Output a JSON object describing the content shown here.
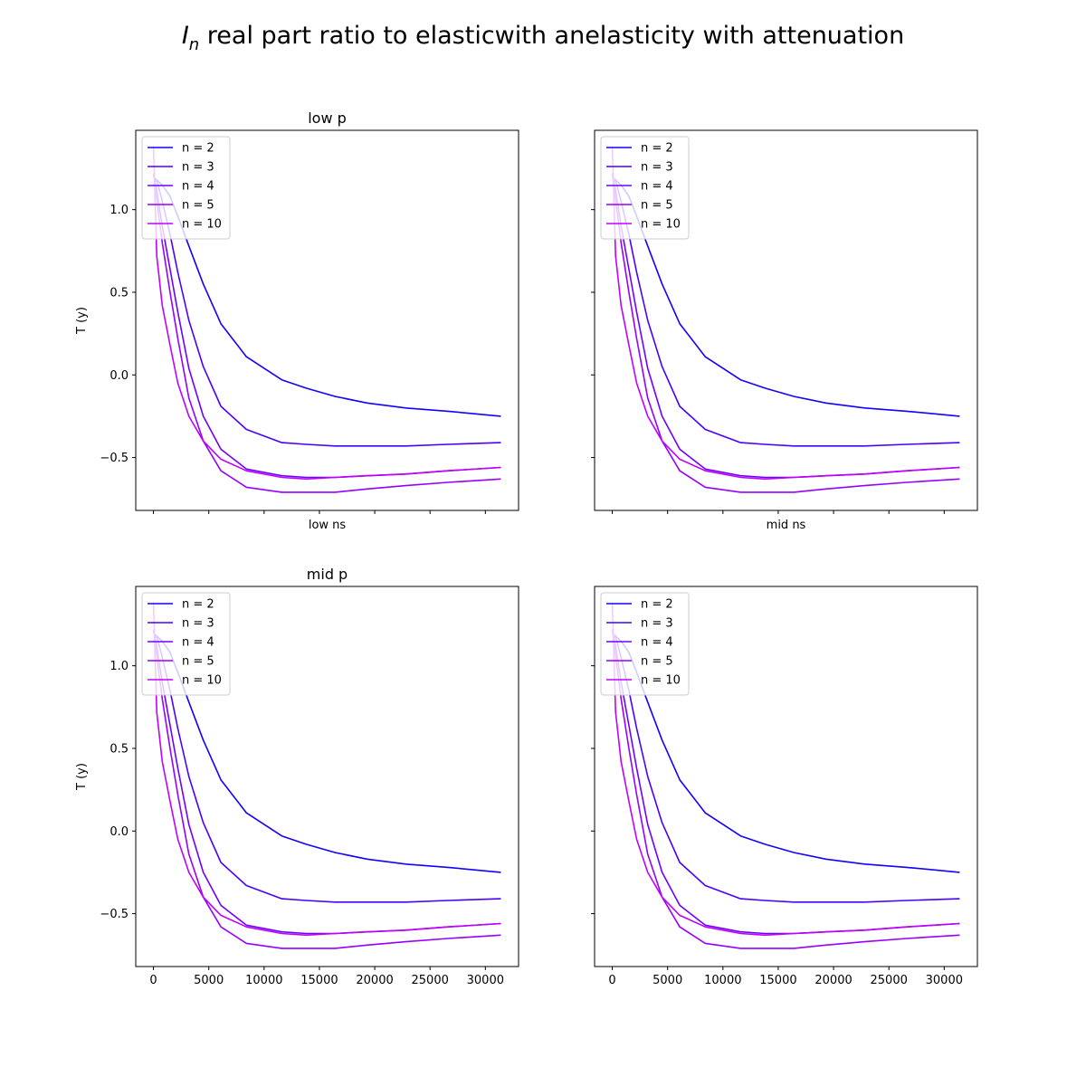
{
  "figure": {
    "title_symbol": "I",
    "title_subscript": "n",
    "title_rest": " real part ratio to elasticwith anelasticity with attenuation"
  },
  "chart_data": [
    {
      "type": "line",
      "title": "low p",
      "xlabel": "low ns",
      "ylabel": "T (y)",
      "xlim": [
        -1600,
        33000
      ],
      "ylim": [
        -0.82,
        1.48
      ],
      "xticks": [
        0,
        5000,
        10000,
        15000,
        20000,
        25000,
        30000
      ],
      "yticks": [
        -0.5,
        0.0,
        0.5,
        1.0
      ],
      "show_xtick_labels": false,
      "show_ytick_labels": true,
      "legend": "upper left",
      "x": [
        0,
        300,
        800,
        1500,
        2200,
        3200,
        4500,
        6100,
        8400,
        11600,
        13800,
        16400,
        19300,
        22800,
        26600,
        31400
      ],
      "series": [
        {
          "name": "n = 2",
          "color": "#1400ff",
          "values": [
            1.15,
            1.18,
            1.15,
            1.08,
            0.96,
            0.78,
            0.55,
            0.31,
            0.11,
            -0.03,
            -0.08,
            -0.13,
            -0.17,
            -0.2,
            -0.22,
            -0.25
          ]
        },
        {
          "name": "n = 3",
          "color": "#4800ff",
          "values": [
            1.2,
            1.18,
            1.05,
            0.85,
            0.62,
            0.33,
            0.05,
            -0.19,
            -0.33,
            -0.41,
            -0.42,
            -0.43,
            -0.43,
            -0.43,
            -0.42,
            -0.41
          ]
        },
        {
          "name": "n = 4",
          "color": "#6f00ff",
          "values": [
            1.22,
            1.12,
            0.9,
            0.64,
            0.38,
            0.04,
            -0.25,
            -0.45,
            -0.57,
            -0.61,
            -0.62,
            -0.62,
            -0.61,
            -0.6,
            -0.58,
            -0.56
          ]
        },
        {
          "name": "n = 5",
          "color": "#9600ff",
          "values": [
            1.22,
            1.06,
            0.8,
            0.5,
            0.22,
            -0.14,
            -0.4,
            -0.58,
            -0.68,
            -0.71,
            -0.71,
            -0.71,
            -0.69,
            -0.67,
            -0.65,
            -0.63
          ]
        },
        {
          "name": "n = 10",
          "color": "#c000ff",
          "values": [
            1.38,
            0.72,
            0.42,
            0.18,
            -0.05,
            -0.25,
            -0.4,
            -0.51,
            -0.58,
            -0.62,
            -0.63,
            -0.62,
            -0.61,
            -0.6,
            -0.58,
            -0.56
          ]
        }
      ]
    },
    {
      "type": "line",
      "title": "",
      "xlabel": "mid ns",
      "ylabel": "",
      "xlim": [
        -1600,
        33000
      ],
      "ylim": [
        -0.82,
        1.48
      ],
      "xticks": [
        0,
        5000,
        10000,
        15000,
        20000,
        25000,
        30000
      ],
      "yticks": [
        -0.5,
        0.0,
        0.5,
        1.0
      ],
      "show_xtick_labels": false,
      "show_ytick_labels": false,
      "legend": "upper left",
      "x": [
        0,
        300,
        800,
        1500,
        2200,
        3200,
        4500,
        6100,
        8400,
        11600,
        13800,
        16400,
        19300,
        22800,
        26600,
        31400
      ],
      "series": [
        {
          "name": "n = 2",
          "color": "#1400ff",
          "values": [
            1.15,
            1.18,
            1.15,
            1.08,
            0.96,
            0.78,
            0.55,
            0.31,
            0.11,
            -0.03,
            -0.08,
            -0.13,
            -0.17,
            -0.2,
            -0.22,
            -0.25
          ]
        },
        {
          "name": "n = 3",
          "color": "#4800ff",
          "values": [
            1.2,
            1.18,
            1.05,
            0.85,
            0.62,
            0.33,
            0.05,
            -0.19,
            -0.33,
            -0.41,
            -0.42,
            -0.43,
            -0.43,
            -0.43,
            -0.42,
            -0.41
          ]
        },
        {
          "name": "n = 4",
          "color": "#6f00ff",
          "values": [
            1.22,
            1.12,
            0.9,
            0.64,
            0.38,
            0.04,
            -0.25,
            -0.45,
            -0.57,
            -0.61,
            -0.62,
            -0.62,
            -0.61,
            -0.6,
            -0.58,
            -0.56
          ]
        },
        {
          "name": "n = 5",
          "color": "#9600ff",
          "values": [
            1.22,
            1.06,
            0.8,
            0.5,
            0.22,
            -0.14,
            -0.4,
            -0.58,
            -0.68,
            -0.71,
            -0.71,
            -0.71,
            -0.69,
            -0.67,
            -0.65,
            -0.63
          ]
        },
        {
          "name": "n = 10",
          "color": "#c000ff",
          "values": [
            1.38,
            0.72,
            0.42,
            0.18,
            -0.05,
            -0.25,
            -0.4,
            -0.51,
            -0.58,
            -0.62,
            -0.63,
            -0.62,
            -0.61,
            -0.6,
            -0.58,
            -0.56
          ]
        }
      ]
    },
    {
      "type": "line",
      "title": "mid p",
      "xlabel": "",
      "ylabel": "T (y)",
      "xlim": [
        -1600,
        33000
      ],
      "ylim": [
        -0.82,
        1.48
      ],
      "xticks": [
        0,
        5000,
        10000,
        15000,
        20000,
        25000,
        30000
      ],
      "yticks": [
        -0.5,
        0.0,
        0.5,
        1.0
      ],
      "show_xtick_labels": true,
      "show_ytick_labels": true,
      "legend": "upper left",
      "x": [
        0,
        300,
        800,
        1500,
        2200,
        3200,
        4500,
        6100,
        8400,
        11600,
        13800,
        16400,
        19300,
        22800,
        26600,
        31400
      ],
      "series": [
        {
          "name": "n = 2",
          "color": "#1400ff",
          "values": [
            1.15,
            1.18,
            1.15,
            1.08,
            0.96,
            0.78,
            0.55,
            0.31,
            0.11,
            -0.03,
            -0.08,
            -0.13,
            -0.17,
            -0.2,
            -0.22,
            -0.25
          ]
        },
        {
          "name": "n = 3",
          "color": "#4800ff",
          "values": [
            1.2,
            1.18,
            1.05,
            0.85,
            0.62,
            0.33,
            0.05,
            -0.19,
            -0.33,
            -0.41,
            -0.42,
            -0.43,
            -0.43,
            -0.43,
            -0.42,
            -0.41
          ]
        },
        {
          "name": "n = 4",
          "color": "#6f00ff",
          "values": [
            1.22,
            1.12,
            0.9,
            0.64,
            0.38,
            0.04,
            -0.25,
            -0.45,
            -0.57,
            -0.61,
            -0.62,
            -0.62,
            -0.61,
            -0.6,
            -0.58,
            -0.56
          ]
        },
        {
          "name": "n = 5",
          "color": "#9600ff",
          "values": [
            1.22,
            1.06,
            0.8,
            0.5,
            0.22,
            -0.14,
            -0.4,
            -0.58,
            -0.68,
            -0.71,
            -0.71,
            -0.71,
            -0.69,
            -0.67,
            -0.65,
            -0.63
          ]
        },
        {
          "name": "n = 10",
          "color": "#c000ff",
          "values": [
            1.38,
            0.72,
            0.42,
            0.18,
            -0.05,
            -0.25,
            -0.4,
            -0.51,
            -0.58,
            -0.62,
            -0.63,
            -0.62,
            -0.61,
            -0.6,
            -0.58,
            -0.56
          ]
        }
      ]
    },
    {
      "type": "line",
      "title": "",
      "xlabel": "",
      "ylabel": "",
      "xlim": [
        -1600,
        33000
      ],
      "ylim": [
        -0.82,
        1.48
      ],
      "xticks": [
        0,
        5000,
        10000,
        15000,
        20000,
        25000,
        30000
      ],
      "yticks": [
        -0.5,
        0.0,
        0.5,
        1.0
      ],
      "show_xtick_labels": true,
      "show_ytick_labels": false,
      "legend": "upper left",
      "x": [
        0,
        300,
        800,
        1500,
        2200,
        3200,
        4500,
        6100,
        8400,
        11600,
        13800,
        16400,
        19300,
        22800,
        26600,
        31400
      ],
      "series": [
        {
          "name": "n = 2",
          "color": "#1400ff",
          "values": [
            1.15,
            1.18,
            1.15,
            1.08,
            0.96,
            0.78,
            0.55,
            0.31,
            0.11,
            -0.03,
            -0.08,
            -0.13,
            -0.17,
            -0.2,
            -0.22,
            -0.25
          ]
        },
        {
          "name": "n = 3",
          "color": "#4800ff",
          "values": [
            1.2,
            1.18,
            1.05,
            0.85,
            0.62,
            0.33,
            0.05,
            -0.19,
            -0.33,
            -0.41,
            -0.42,
            -0.43,
            -0.43,
            -0.43,
            -0.42,
            -0.41
          ]
        },
        {
          "name": "n = 4",
          "color": "#6f00ff",
          "values": [
            1.22,
            1.12,
            0.9,
            0.64,
            0.38,
            0.04,
            -0.25,
            -0.45,
            -0.57,
            -0.61,
            -0.62,
            -0.62,
            -0.61,
            -0.6,
            -0.58,
            -0.56
          ]
        },
        {
          "name": "n = 5",
          "color": "#9600ff",
          "values": [
            1.22,
            1.06,
            0.8,
            0.5,
            0.22,
            -0.14,
            -0.4,
            -0.58,
            -0.68,
            -0.71,
            -0.71,
            -0.71,
            -0.69,
            -0.67,
            -0.65,
            -0.63
          ]
        },
        {
          "name": "n = 10",
          "color": "#c000ff",
          "values": [
            1.38,
            0.72,
            0.42,
            0.18,
            -0.05,
            -0.25,
            -0.4,
            -0.51,
            -0.58,
            -0.62,
            -0.63,
            -0.62,
            -0.61,
            -0.6,
            -0.58,
            -0.56
          ]
        }
      ]
    }
  ]
}
